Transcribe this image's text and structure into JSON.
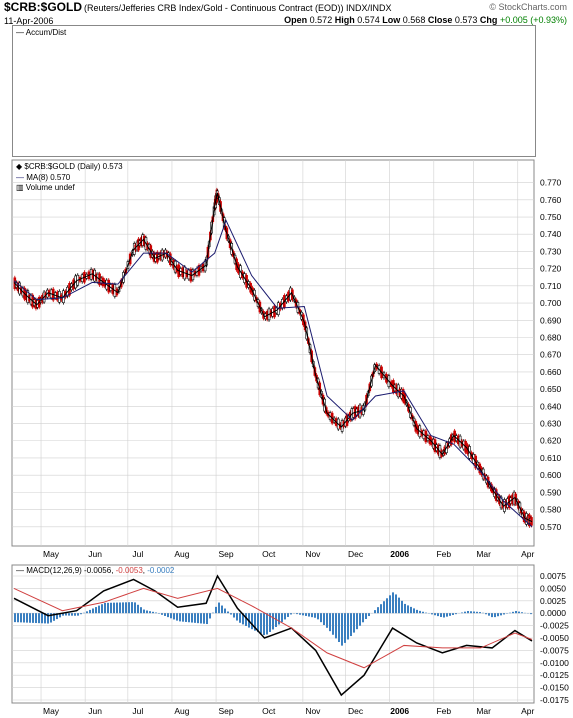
{
  "header": {
    "symbol": "$CRB:$GOLD",
    "name": "(Reuters/Jefferies CRB Index/Gold - Continuous Contract (EOD)) INDX/INDX",
    "brand": "© StockCharts.com",
    "date": "11-Apr-2006",
    "open_label": "Open",
    "open": "0.572",
    "high_label": "High",
    "high": "0.574",
    "low_label": "Low",
    "low": "0.568",
    "close_label": "Close",
    "close": "0.573",
    "chg_label": "Chg",
    "chg": "+0.005 (+0.93%)"
  },
  "accum_panel": {
    "legend": "Accum/Dist"
  },
  "price_panel": {
    "legend_symbol": "$CRB:$GOLD (Daily) 0.573",
    "legend_ma": "MA(8) 0.570",
    "legend_volume": "Volume undef"
  },
  "macd_panel": {
    "legend_prefix": "MACD(12,26,9)",
    "legend_v1": "-0.0056",
    "legend_v2": "-0.0053",
    "legend_v3": "-0.0002"
  },
  "months": [
    "May",
    "Jun",
    "Jul",
    "Aug",
    "Sep",
    "Oct",
    "Nov",
    "Dec",
    "2006",
    "Feb",
    "Mar",
    "Apr"
  ],
  "colors": {
    "up": "#000000",
    "down": "#cc0000",
    "ma": "#1a1a6e",
    "macd": "#000000",
    "signal": "#d04040",
    "histogram": "#3a7fc0",
    "grid": "#d0d0d0"
  },
  "chart_data": [
    {
      "type": "line",
      "title": "$CRB:$GOLD (Daily)",
      "ylim": [
        0.56,
        0.775
      ],
      "yticks": [
        "0.770",
        "0.760",
        "0.750",
        "0.740",
        "0.730",
        "0.720",
        "0.710",
        "0.700",
        "0.690",
        "0.680",
        "0.670",
        "0.660",
        "0.650",
        "0.640",
        "0.630",
        "0.620",
        "0.610",
        "0.600",
        "0.590",
        "0.580",
        "0.570"
      ],
      "xticks": [
        "May",
        "Jun",
        "Jul",
        "Aug",
        "Sep",
        "Oct",
        "Nov",
        "Dec",
        "2006",
        "Feb",
        "Mar",
        "Apr"
      ],
      "series": [
        {
          "name": "$CRB:$GOLD",
          "x": [
            "2005-04-12",
            "2005-04-20",
            "2005-04-28",
            "2005-05-06",
            "2005-05-16",
            "2005-05-26",
            "2005-06-06",
            "2005-06-14",
            "2005-06-24",
            "2005-07-05",
            "2005-07-12",
            "2005-07-20",
            "2005-07-28",
            "2005-08-05",
            "2005-08-15",
            "2005-08-25",
            "2005-08-31",
            "2005-09-02",
            "2005-09-08",
            "2005-09-16",
            "2005-09-26",
            "2005-10-05",
            "2005-10-14",
            "2005-10-24",
            "2005-11-02",
            "2005-11-10",
            "2005-11-18",
            "2005-11-28",
            "2005-12-06",
            "2005-12-14",
            "2005-12-22",
            "2006-01-03",
            "2006-01-11",
            "2006-01-20",
            "2006-01-30",
            "2006-02-07",
            "2006-02-15",
            "2006-02-24",
            "2006-03-06",
            "2006-03-14",
            "2006-03-22",
            "2006-03-30",
            "2006-04-06",
            "2006-04-11"
          ],
          "values": [
            0.712,
            0.705,
            0.699,
            0.706,
            0.703,
            0.713,
            0.717,
            0.712,
            0.706,
            0.731,
            0.737,
            0.726,
            0.729,
            0.719,
            0.716,
            0.722,
            0.756,
            0.764,
            0.742,
            0.721,
            0.708,
            0.692,
            0.696,
            0.706,
            0.689,
            0.658,
            0.636,
            0.628,
            0.636,
            0.638,
            0.664,
            0.652,
            0.646,
            0.627,
            0.62,
            0.612,
            0.623,
            0.616,
            0.603,
            0.592,
            0.582,
            0.587,
            0.575,
            0.573
          ]
        },
        {
          "name": "MA(8)",
          "x": [
            "2005-04-12",
            "2005-04-28",
            "2005-05-16",
            "2005-06-06",
            "2005-06-24",
            "2005-07-12",
            "2005-07-28",
            "2005-08-15",
            "2005-08-31",
            "2005-09-08",
            "2005-09-26",
            "2005-10-14",
            "2005-11-02",
            "2005-11-18",
            "2005-12-06",
            "2005-12-22",
            "2006-01-11",
            "2006-01-30",
            "2006-02-15",
            "2006-03-06",
            "2006-03-22",
            "2006-04-11"
          ],
          "values": [
            0.713,
            0.702,
            0.703,
            0.712,
            0.711,
            0.729,
            0.729,
            0.718,
            0.729,
            0.748,
            0.716,
            0.697,
            0.698,
            0.646,
            0.632,
            0.646,
            0.649,
            0.623,
            0.618,
            0.602,
            0.585,
            0.57
          ]
        }
      ]
    },
    {
      "type": "line",
      "title": "MACD(12,26,9)",
      "ylim": [
        -0.0175,
        0.0075
      ],
      "yticks": [
        "0.0075",
        "0.0050",
        "0.0025",
        "0.0000",
        "-0.0025",
        "-0.0050",
        "-0.0075",
        "-0.0100",
        "-0.0125",
        "-0.0150",
        "-0.0175"
      ],
      "xticks": [
        "May",
        "Jun",
        "Jul",
        "Aug",
        "Sep",
        "Oct",
        "Nov",
        "Dec",
        "2006",
        "Feb",
        "Mar",
        "Apr"
      ],
      "series": [
        {
          "name": "MACD",
          "x": [
            "2005-04-12",
            "2005-05-06",
            "2005-05-26",
            "2005-06-14",
            "2005-07-05",
            "2005-07-20",
            "2005-08-05",
            "2005-08-25",
            "2005-09-02",
            "2005-09-16",
            "2005-10-05",
            "2005-10-24",
            "2005-11-10",
            "2005-11-28",
            "2005-12-14",
            "2006-01-03",
            "2006-01-20",
            "2006-02-07",
            "2006-02-24",
            "2006-03-14",
            "2006-03-30",
            "2006-04-11"
          ],
          "values": [
            0.003,
            -0.0005,
            0.0005,
            0.0045,
            0.0068,
            0.0045,
            0.0012,
            0.002,
            0.0075,
            0.001,
            -0.005,
            -0.003,
            -0.0075,
            -0.0165,
            -0.0125,
            -0.003,
            -0.006,
            -0.008,
            -0.0065,
            -0.007,
            -0.0035,
            -0.0056
          ]
        },
        {
          "name": "Signal",
          "x": [
            "2005-04-12",
            "2005-05-16",
            "2005-06-14",
            "2005-07-12",
            "2005-08-05",
            "2005-09-02",
            "2005-09-26",
            "2005-10-24",
            "2005-11-18",
            "2005-12-14",
            "2006-01-11",
            "2006-02-07",
            "2006-03-06",
            "2006-03-30",
            "2006-04-11"
          ],
          "values": [
            0.005,
            0.0005,
            0.0022,
            0.005,
            0.003,
            0.005,
            0.0015,
            -0.003,
            -0.008,
            -0.011,
            -0.0065,
            -0.007,
            -0.007,
            -0.004,
            -0.0053
          ]
        }
      ]
    }
  ]
}
